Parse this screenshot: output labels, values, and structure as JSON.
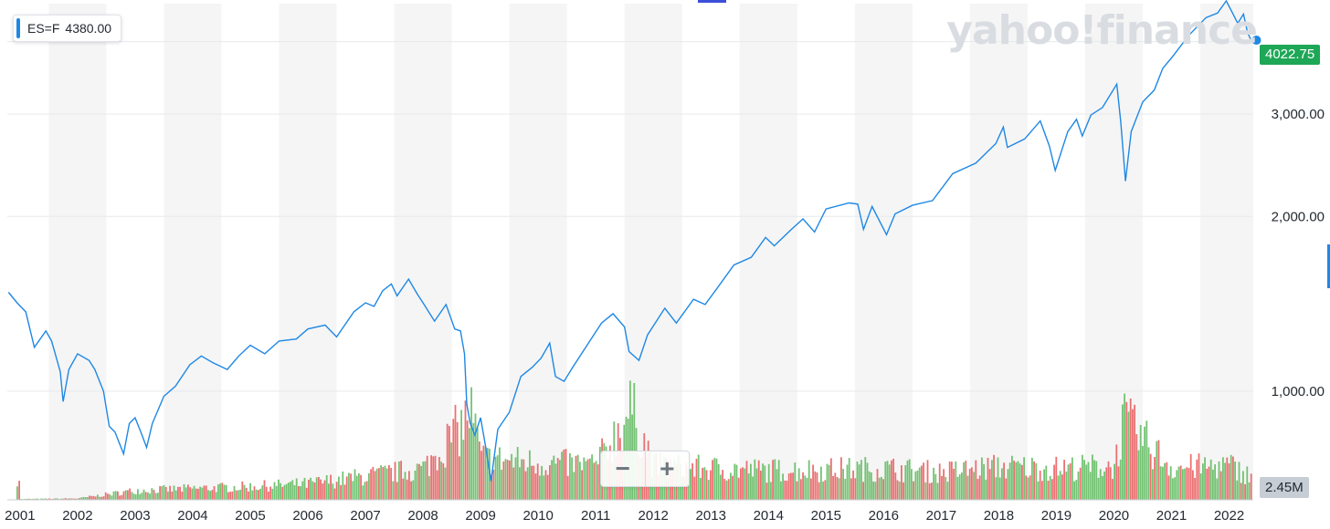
{
  "legend": {
    "symbol": "ES=F",
    "value": "4380.00"
  },
  "brand": "yahoo!finance",
  "last_price_label": "4022.75",
  "volume_label": "2.45M",
  "zoom": {
    "minus_label": "−",
    "plus_label": "+"
  },
  "colors": {
    "line": "#1e88e5",
    "up": "#5cb85c",
    "down": "#e8585a",
    "band": "#f5f5f5",
    "last": "#1da756"
  },
  "chart_data": {
    "type": "line",
    "title": "",
    "xlabel": "",
    "ylabel": "",
    "y_scale": "log",
    "ylim": [
      650,
      4650
    ],
    "xlim": [
      2000.78,
      2022.42
    ],
    "grid": true,
    "y_ticks": [
      1000,
      2000,
      3000
    ],
    "y_tick_labels": [
      "1,000.00",
      "2,000.00",
      "3,000.00"
    ],
    "x_ticks": [
      2001,
      2002,
      2003,
      2004,
      2005,
      2006,
      2007,
      2008,
      2009,
      2010,
      2011,
      2012,
      2013,
      2014,
      2015,
      2016,
      2017,
      2018,
      2019,
      2020,
      2021,
      2022
    ],
    "x_tick_labels": [
      "2001",
      "2002",
      "2003",
      "2004",
      "2005",
      "2006",
      "2007",
      "2008",
      "2009",
      "2010",
      "2011",
      "2012",
      "2013",
      "2014",
      "2015",
      "2016",
      "2017",
      "2018",
      "2019",
      "2020",
      "2021",
      "2022"
    ],
    "series": [
      {
        "values": [
          [
            2000.8,
            1480
          ],
          [
            2000.95,
            1420
          ],
          [
            2001.1,
            1370
          ],
          [
            2001.25,
            1190
          ],
          [
            2001.45,
            1270
          ],
          [
            2001.55,
            1220
          ],
          [
            2001.7,
            1080
          ],
          [
            2001.75,
            960
          ],
          [
            2001.85,
            1090
          ],
          [
            2002.0,
            1160
          ],
          [
            2002.2,
            1130
          ],
          [
            2002.3,
            1090
          ],
          [
            2002.45,
            1000
          ],
          [
            2002.55,
            870
          ],
          [
            2002.65,
            850
          ],
          [
            2002.8,
            780
          ],
          [
            2002.9,
            880
          ],
          [
            2003.0,
            900
          ],
          [
            2003.1,
            850
          ],
          [
            2003.2,
            800
          ],
          [
            2003.3,
            880
          ],
          [
            2003.5,
            980
          ],
          [
            2003.7,
            1020
          ],
          [
            2003.95,
            1110
          ],
          [
            2004.15,
            1150
          ],
          [
            2004.35,
            1120
          ],
          [
            2004.6,
            1090
          ],
          [
            2004.8,
            1150
          ],
          [
            2005.0,
            1200
          ],
          [
            2005.25,
            1160
          ],
          [
            2005.5,
            1220
          ],
          [
            2005.8,
            1230
          ],
          [
            2006.0,
            1280
          ],
          [
            2006.3,
            1300
          ],
          [
            2006.5,
            1240
          ],
          [
            2006.8,
            1370
          ],
          [
            2007.0,
            1420
          ],
          [
            2007.15,
            1400
          ],
          [
            2007.3,
            1490
          ],
          [
            2007.45,
            1530
          ],
          [
            2007.55,
            1460
          ],
          [
            2007.75,
            1560
          ],
          [
            2007.9,
            1470
          ],
          [
            2008.0,
            1420
          ],
          [
            2008.2,
            1320
          ],
          [
            2008.4,
            1410
          ],
          [
            2008.55,
            1280
          ],
          [
            2008.65,
            1270
          ],
          [
            2008.72,
            1160
          ],
          [
            2008.76,
            950
          ],
          [
            2008.82,
            880
          ],
          [
            2008.9,
            840
          ],
          [
            2009.0,
            900
          ],
          [
            2009.1,
            790
          ],
          [
            2009.18,
            700
          ],
          [
            2009.3,
            860
          ],
          [
            2009.5,
            920
          ],
          [
            2009.7,
            1060
          ],
          [
            2009.9,
            1100
          ],
          [
            2010.05,
            1140
          ],
          [
            2010.2,
            1210
          ],
          [
            2010.3,
            1060
          ],
          [
            2010.45,
            1040
          ],
          [
            2010.6,
            1100
          ],
          [
            2010.85,
            1200
          ],
          [
            2011.1,
            1310
          ],
          [
            2011.3,
            1360
          ],
          [
            2011.5,
            1290
          ],
          [
            2011.58,
            1170
          ],
          [
            2011.75,
            1130
          ],
          [
            2011.9,
            1250
          ],
          [
            2012.2,
            1390
          ],
          [
            2012.4,
            1310
          ],
          [
            2012.7,
            1440
          ],
          [
            2012.9,
            1410
          ],
          [
            2013.1,
            1500
          ],
          [
            2013.4,
            1650
          ],
          [
            2013.7,
            1700
          ],
          [
            2013.95,
            1840
          ],
          [
            2014.1,
            1780
          ],
          [
            2014.4,
            1900
          ],
          [
            2014.6,
            1980
          ],
          [
            2014.8,
            1880
          ],
          [
            2015.0,
            2060
          ],
          [
            2015.4,
            2110
          ],
          [
            2015.55,
            2100
          ],
          [
            2015.65,
            1900
          ],
          [
            2015.8,
            2080
          ],
          [
            2016.05,
            1860
          ],
          [
            2016.2,
            2020
          ],
          [
            2016.5,
            2090
          ],
          [
            2016.85,
            2130
          ],
          [
            2017.2,
            2370
          ],
          [
            2017.6,
            2470
          ],
          [
            2017.95,
            2670
          ],
          [
            2018.08,
            2850
          ],
          [
            2018.15,
            2630
          ],
          [
            2018.45,
            2720
          ],
          [
            2018.72,
            2920
          ],
          [
            2018.88,
            2640
          ],
          [
            2018.98,
            2400
          ],
          [
            2019.2,
            2800
          ],
          [
            2019.35,
            2940
          ],
          [
            2019.45,
            2750
          ],
          [
            2019.6,
            2990
          ],
          [
            2019.8,
            3080
          ],
          [
            2020.05,
            3380
          ],
          [
            2020.12,
            2900
          ],
          [
            2020.2,
            2300
          ],
          [
            2020.3,
            2800
          ],
          [
            2020.5,
            3150
          ],
          [
            2020.7,
            3300
          ],
          [
            2020.85,
            3600
          ],
          [
            2021.0,
            3750
          ],
          [
            2021.3,
            4100
          ],
          [
            2021.6,
            4400
          ],
          [
            2021.8,
            4480
          ],
          [
            2021.95,
            4700
          ],
          [
            2022.05,
            4500
          ],
          [
            2022.15,
            4300
          ],
          [
            2022.25,
            4460
          ],
          [
            2022.32,
            4150
          ],
          [
            2022.38,
            4022.75
          ]
        ]
      }
    ],
    "volume": {
      "max": 11.0,
      "values": [
        [
          2001,
          0.08
        ],
        [
          2002,
          0.15
        ],
        [
          2003,
          1.0
        ],
        [
          2004,
          1.2
        ],
        [
          2005,
          1.4
        ],
        [
          2006,
          1.7
        ],
        [
          2007,
          2.5
        ],
        [
          2008,
          3.3
        ],
        [
          2008.75,
          8.5
        ],
        [
          2008.8,
          9.8
        ],
        [
          2009,
          4.4
        ],
        [
          2010,
          3.9
        ],
        [
          2011,
          3.7
        ],
        [
          2011.6,
          9.6
        ],
        [
          2012,
          3.6
        ],
        [
          2013,
          3.3
        ],
        [
          2014,
          3.1
        ],
        [
          2015,
          3.2
        ],
        [
          2016,
          3.3
        ],
        [
          2017,
          2.9
        ],
        [
          2018,
          3.5
        ],
        [
          2019,
          3.3
        ],
        [
          2020,
          3.6
        ],
        [
          2020.15,
          8.3
        ],
        [
          2021,
          3.4
        ],
        [
          2022,
          3.6
        ],
        [
          2022.38,
          2.45
        ]
      ]
    }
  }
}
